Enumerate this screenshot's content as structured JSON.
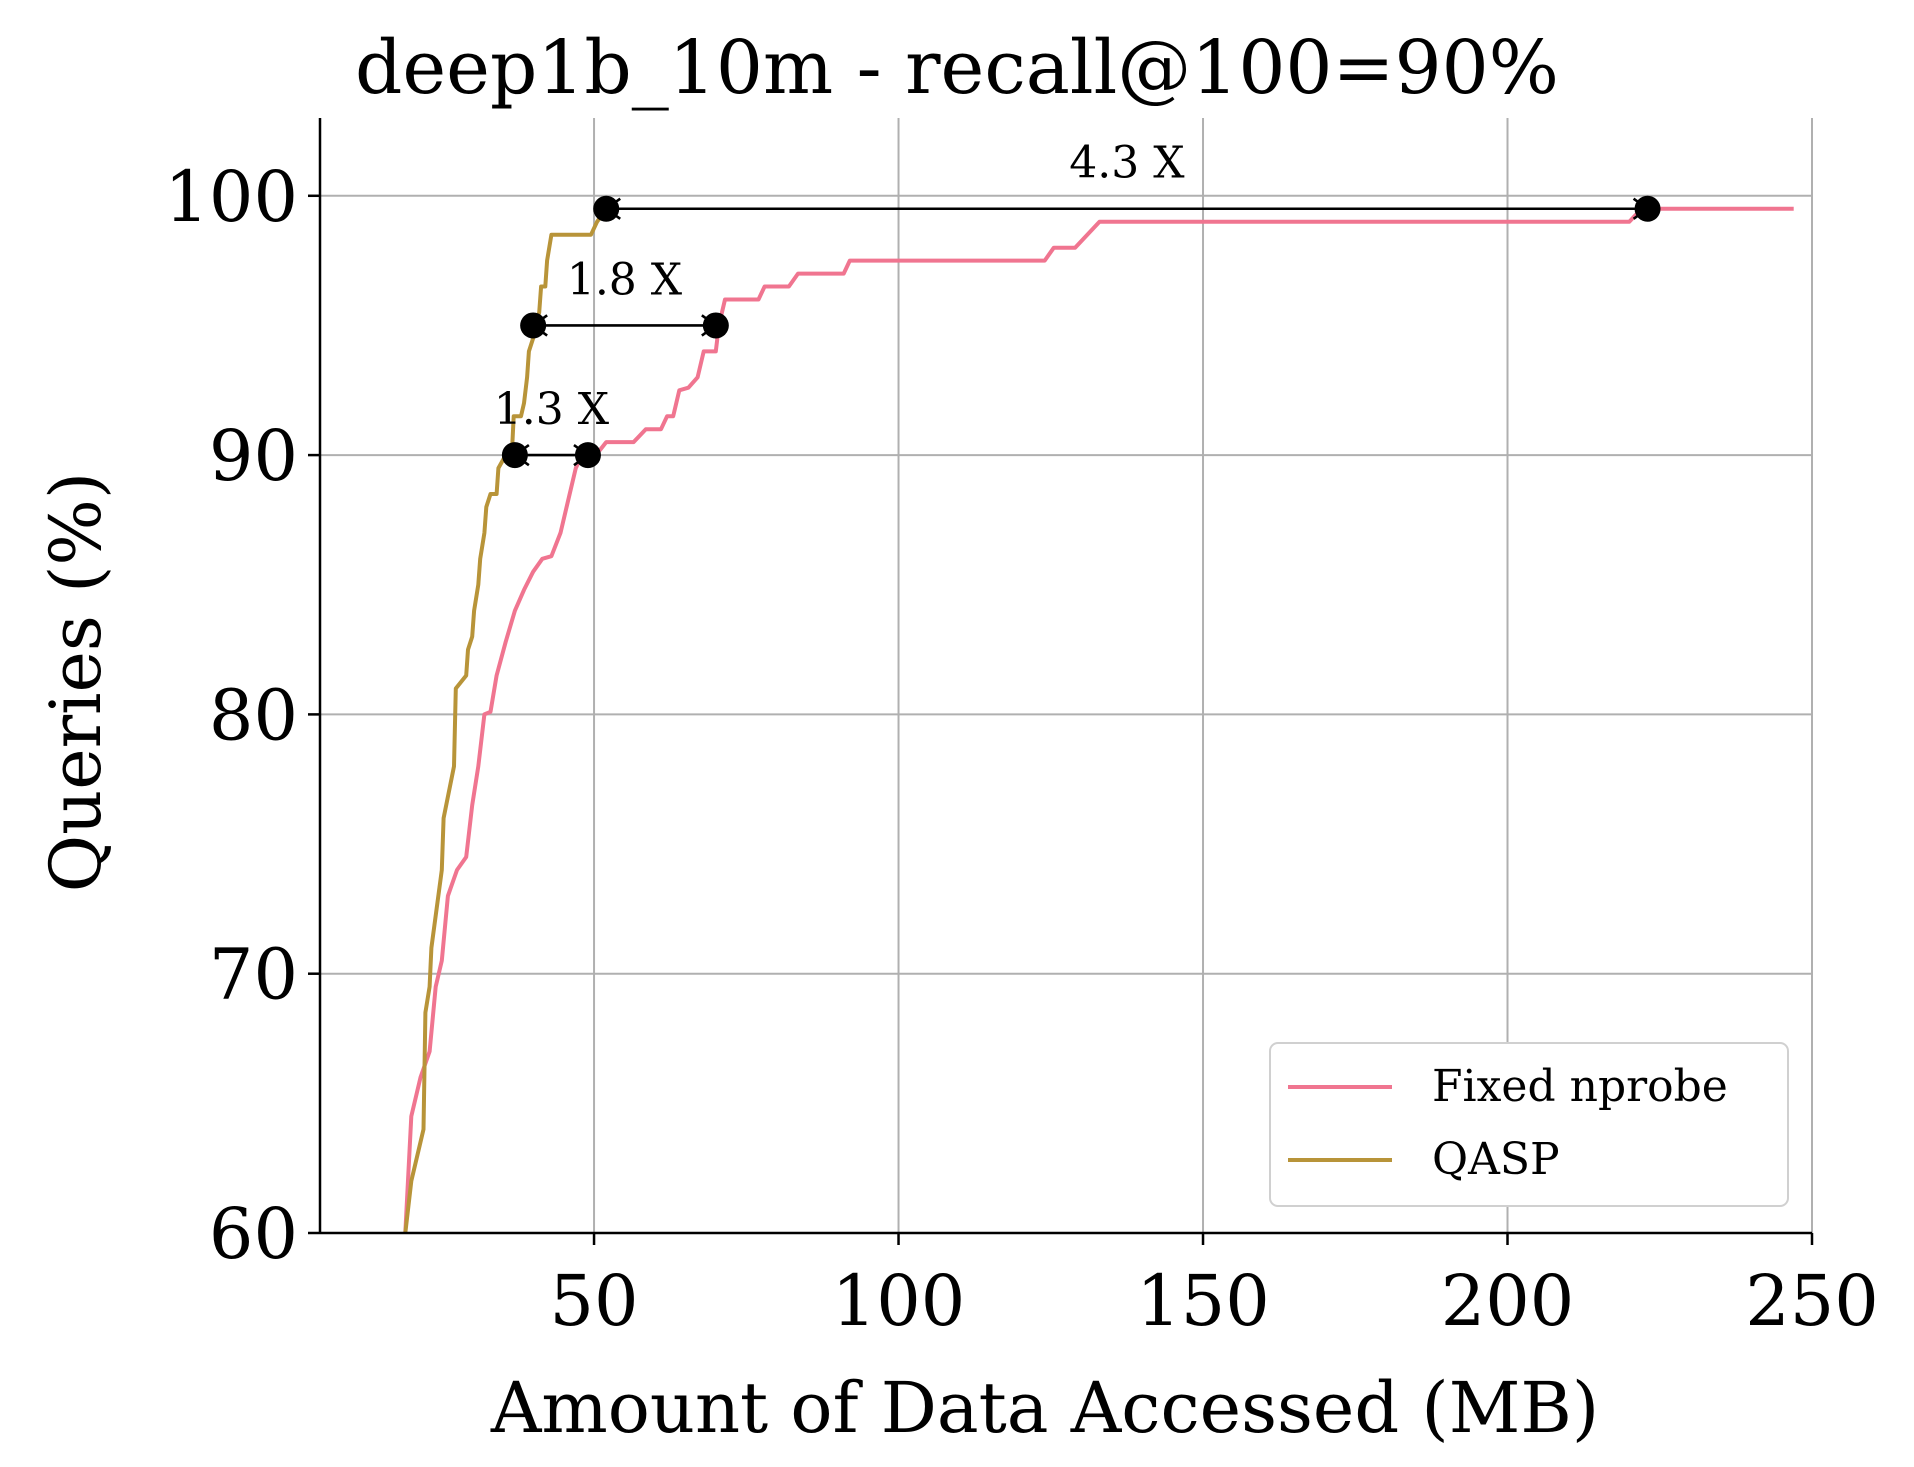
{
  "chart_data": {
    "type": "line",
    "title": "deep1b_10m - recall@100=90%",
    "xlabel": "Amount of Data Accessed (MB)",
    "ylabel": "Queries (%)",
    "xlim": [
      5,
      250
    ],
    "ylim": [
      60,
      103
    ],
    "xticks": [
      50,
      100,
      150,
      200,
      250
    ],
    "yticks": [
      60,
      70,
      80,
      90,
      100
    ],
    "grid": true,
    "legend_position": "lower-right",
    "series": [
      {
        "name": "Fixed nprobe",
        "color": "#f07590",
        "points": [
          [
            19,
            60
          ],
          [
            20,
            64.5
          ],
          [
            21.5,
            66
          ],
          [
            23,
            67
          ],
          [
            24,
            69.5
          ],
          [
            25,
            70.5
          ],
          [
            26,
            73
          ],
          [
            27.5,
            74
          ],
          [
            29,
            74.5
          ],
          [
            30,
            76.5
          ],
          [
            31,
            78
          ],
          [
            32,
            80
          ],
          [
            33,
            80.1
          ],
          [
            34,
            81.5
          ],
          [
            35.5,
            82.8
          ],
          [
            37,
            84
          ],
          [
            38.5,
            84.8
          ],
          [
            40,
            85.5
          ],
          [
            41.5,
            86
          ],
          [
            43,
            86.1
          ],
          [
            44.5,
            87
          ],
          [
            45.5,
            88
          ],
          [
            47,
            89.5
          ],
          [
            48,
            90
          ],
          [
            49,
            90
          ],
          [
            50,
            90.1
          ],
          [
            51,
            90.2
          ],
          [
            52,
            90.5
          ],
          [
            56.5,
            90.5
          ],
          [
            58.5,
            91
          ],
          [
            61,
            91
          ],
          [
            62,
            91.5
          ],
          [
            63,
            91.5
          ],
          [
            64,
            92.5
          ],
          [
            65.5,
            92.6
          ],
          [
            67,
            93
          ],
          [
            68,
            94
          ],
          [
            70,
            94
          ],
          [
            70.5,
            95
          ],
          [
            71.5,
            96
          ],
          [
            77,
            96
          ],
          [
            78,
            96.5
          ],
          [
            82,
            96.5
          ],
          [
            83.5,
            97
          ],
          [
            91,
            97
          ],
          [
            92,
            97.5
          ],
          [
            124,
            97.5
          ],
          [
            125.5,
            98
          ],
          [
            129,
            98
          ],
          [
            133,
            99
          ],
          [
            220,
            99
          ],
          [
            222,
            99.5
          ],
          [
            247,
            99.5
          ]
        ]
      },
      {
        "name": "QASP",
        "color": "#b89439",
        "points": [
          [
            19,
            60
          ],
          [
            20,
            62
          ],
          [
            22,
            64
          ],
          [
            22.3,
            68.5
          ],
          [
            23,
            69.5
          ],
          [
            23.3,
            71
          ],
          [
            25,
            74
          ],
          [
            25.3,
            76
          ],
          [
            27,
            78
          ],
          [
            27.3,
            81
          ],
          [
            29,
            81.5
          ],
          [
            29.3,
            82.5
          ],
          [
            30,
            83
          ],
          [
            30.3,
            84
          ],
          [
            31,
            85
          ],
          [
            31.3,
            86
          ],
          [
            32,
            87
          ],
          [
            32.3,
            88
          ],
          [
            33,
            88.5
          ],
          [
            34,
            88.5
          ],
          [
            34.3,
            89.5
          ],
          [
            35.5,
            90
          ],
          [
            36.5,
            90
          ],
          [
            36.8,
            91.5
          ],
          [
            38,
            91.5
          ],
          [
            38.5,
            92
          ],
          [
            39,
            93
          ],
          [
            39.3,
            94
          ],
          [
            40,
            94.5
          ],
          [
            40.3,
            95
          ],
          [
            41,
            95.5
          ],
          [
            41.3,
            96.5
          ],
          [
            42,
            96.5
          ],
          [
            42.3,
            97.5
          ],
          [
            43,
            98.5
          ],
          [
            49.5,
            98.5
          ],
          [
            50.5,
            99
          ],
          [
            52,
            99.5
          ]
        ]
      }
    ],
    "markers": [
      [
        37,
        90
      ],
      [
        49,
        90
      ],
      [
        40,
        95
      ],
      [
        70,
        95
      ],
      [
        52,
        99.5
      ],
      [
        223,
        99.5
      ]
    ],
    "annotations": [
      {
        "text": "1.3 X",
        "from": [
          37,
          90
        ],
        "to": [
          49,
          90
        ],
        "label_at": [
          43,
          91.2
        ]
      },
      {
        "text": "1.8 X",
        "from": [
          40,
          95
        ],
        "to": [
          70,
          95
        ],
        "label_at": [
          55,
          96.2
        ]
      },
      {
        "text": "4.3 X",
        "from": [
          52,
          99.5
        ],
        "to": [
          223,
          99.5
        ],
        "label_at": [
          137.5,
          100.7
        ]
      }
    ]
  }
}
